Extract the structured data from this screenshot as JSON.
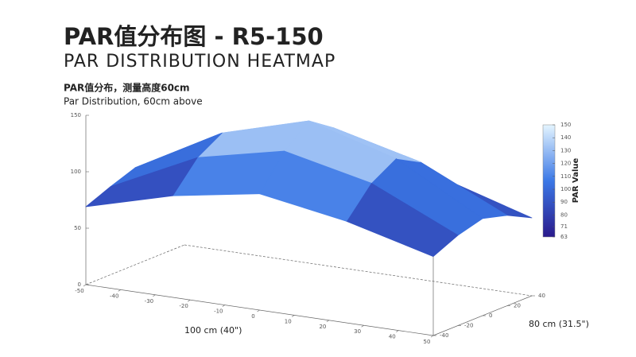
{
  "header": {
    "title": "PAR值分布图 - R5-150",
    "subtitle": "PAR DISTRIBUTION HEATMAP"
  },
  "chart_data": {
    "type": "surface",
    "title": "PAR值分布，测量高度60cm",
    "subtitle": "Par Distribution, 60cm above",
    "x_label": "100 cm (40\")",
    "y_label": "80 cm (31.5\")",
    "colorbar_label": "PAR Value",
    "x": [
      -50,
      -25,
      0,
      25,
      50
    ],
    "y": [
      -40,
      -20,
      0,
      20,
      40
    ],
    "z": [
      [
        69,
        90,
        103,
        90,
        70
      ],
      [
        78,
        115,
        132,
        115,
        80
      ],
      [
        86,
        128,
        150,
        128,
        86
      ],
      [
        80,
        116,
        135,
        116,
        80
      ],
      [
        70,
        92,
        104,
        92,
        69
      ]
    ],
    "xlim": [
      -50,
      50
    ],
    "xticks": [
      -50,
      -40,
      -30,
      -20,
      -10,
      0,
      10,
      20,
      30,
      40,
      50
    ],
    "ylim": [
      -40,
      40
    ],
    "yticks": [
      -40,
      -20,
      0,
      20,
      40
    ],
    "zlim": [
      0,
      150
    ],
    "zticks": [
      0,
      50,
      100,
      150
    ],
    "clim": [
      63,
      150
    ],
    "cticks": [
      63,
      71,
      80,
      90,
      100,
      110,
      120,
      130,
      140,
      150
    ],
    "colormap": [
      "#2a1a8c",
      "#3b78e6",
      "#e4f5ff"
    ]
  }
}
